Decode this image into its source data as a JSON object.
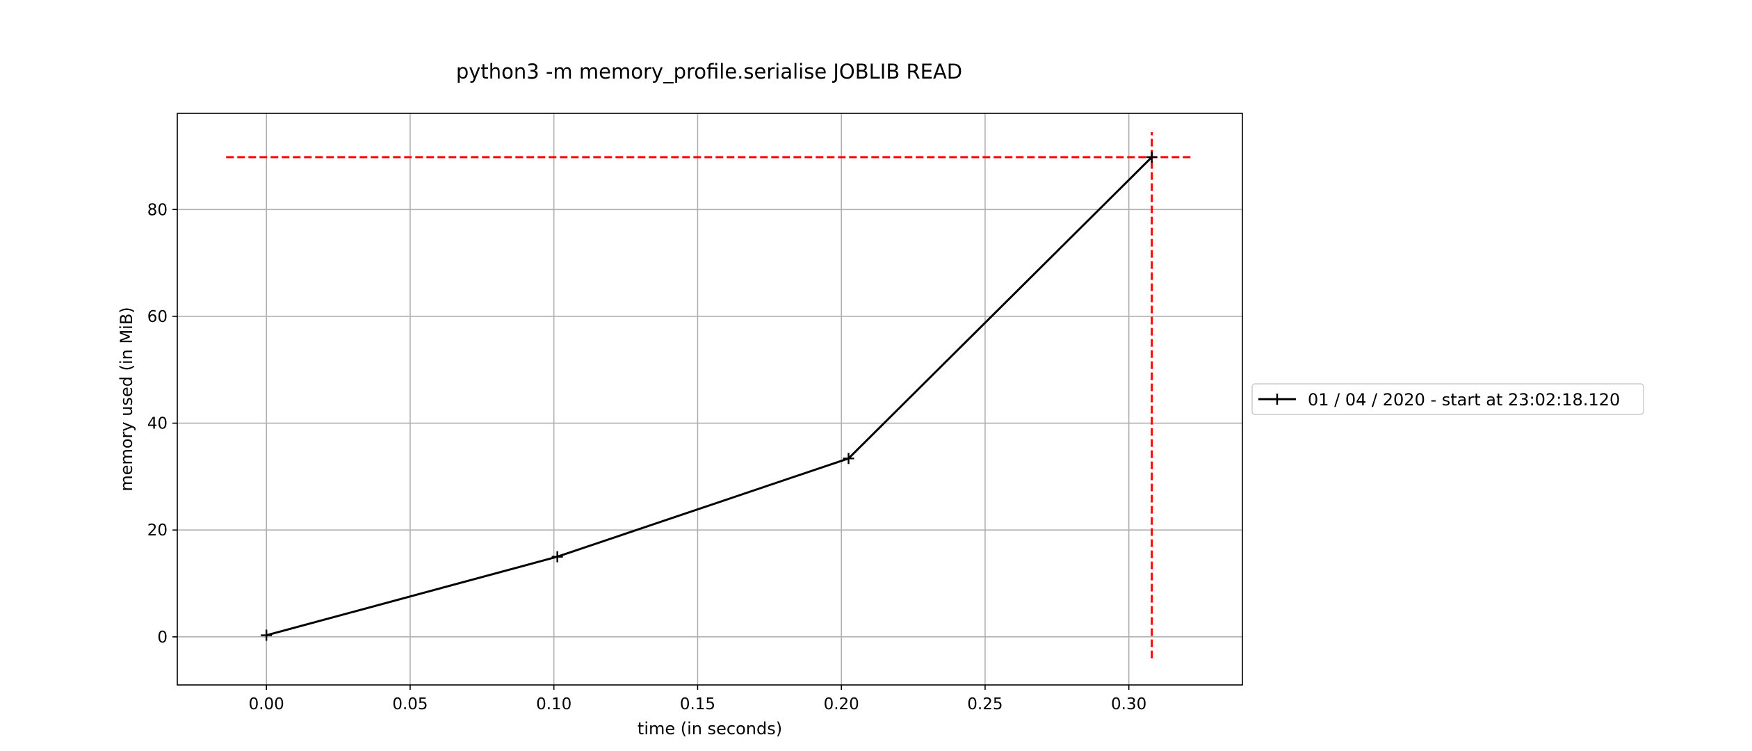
{
  "chart_data": {
    "type": "line",
    "title": "python3 -m memory_profile.serialise JOBLIB READ",
    "xlabel": "time (in seconds)",
    "ylabel": "memory used (in MiB)",
    "xlim": [
      -0.031,
      0.3395
    ],
    "ylim": [
      -9,
      98
    ],
    "xticks": [
      0.0,
      0.05,
      0.1,
      0.15,
      0.2,
      0.25,
      0.3
    ],
    "xtick_labels": [
      "0.00",
      "0.05",
      "0.10",
      "0.15",
      "0.20",
      "0.25",
      "0.30"
    ],
    "yticks": [
      0,
      20,
      40,
      60,
      80
    ],
    "ytick_labels": [
      "0",
      "20",
      "40",
      "60",
      "80"
    ],
    "grid": true,
    "legend_position": "outside-right",
    "series": [
      {
        "name": "01 / 04 / 2020 - start at 23:02:18.120",
        "color": "#000000",
        "marker": "+",
        "x": [
          0.0,
          0.1012,
          0.2025,
          0.308
        ],
        "y": [
          0.3,
          15.0,
          33.4,
          89.8
        ]
      }
    ],
    "reference_lines": [
      {
        "orientation": "horizontal",
        "y": 89.8,
        "x_from": -0.014,
        "x_to": 0.322,
        "color": "#ff0000",
        "style": "dashed"
      },
      {
        "orientation": "vertical",
        "x": 0.308,
        "y_from": -4.0,
        "y_to": 94.5,
        "color": "#ff0000",
        "style": "dashed"
      }
    ]
  }
}
